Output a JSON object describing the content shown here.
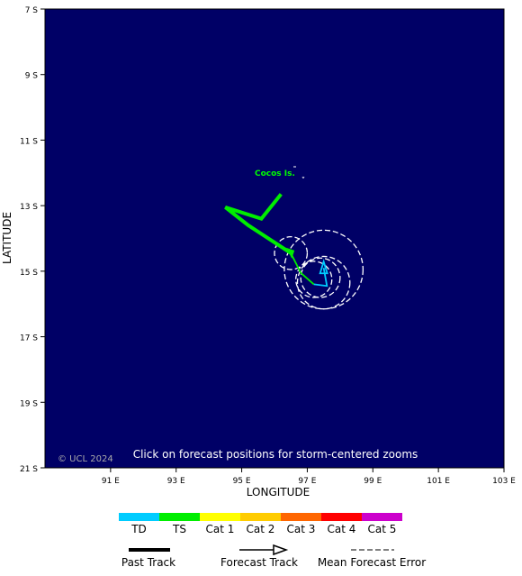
{
  "map": {
    "latitude_label": "LATITUDE",
    "longitude_label": "LONGITUDE",
    "lat_ticks": [
      "7 S",
      "9 S",
      "11 S",
      "13 S",
      "15 S",
      "17 S",
      "19 S",
      "21 S"
    ],
    "lon_ticks": [
      "91 E",
      "93 E",
      "95 E",
      "97 E",
      "99 E",
      "101 E",
      "103 E"
    ],
    "place_label": "Cocos Is.",
    "copyright": "© UCL 2024",
    "instruction": "Click on forecast positions for storm-centered zooms",
    "colors": {
      "ocean": "#000066",
      "past_track": "#00ee00",
      "forecast_track": "#00ccff",
      "place_label": "#00ff00",
      "error_circle": "#ffffff"
    },
    "past_track_points": [
      [
        96.2,
        12.65
      ],
      [
        95.6,
        13.4
      ],
      [
        94.5,
        13.05
      ],
      [
        95.2,
        13.6
      ],
      [
        96.5,
        14.45
      ]
    ],
    "forecast_track_points": [
      [
        96.5,
        14.45
      ],
      [
        96.8,
        15.05
      ],
      [
        97.2,
        15.4
      ],
      [
        97.6,
        15.45
      ],
      [
        97.5,
        14.9
      ]
    ],
    "error_circles": [
      {
        "lon": 96.5,
        "lat": 14.45,
        "r_deg": 0.5
      },
      {
        "lon": 97.2,
        "lat": 15.25,
        "r_deg": 0.55
      },
      {
        "lon": 97.4,
        "lat": 15.2,
        "r_deg": 0.6
      },
      {
        "lon": 97.5,
        "lat": 15.35,
        "r_deg": 0.8
      },
      {
        "lon": 97.5,
        "lat": 14.95,
        "r_deg": 1.2
      }
    ]
  },
  "legend": {
    "categories": [
      {
        "label": "TD",
        "color": "#00ccff"
      },
      {
        "label": "TS",
        "color": "#00ee00"
      },
      {
        "label": "Cat 1",
        "color": "#ffff00"
      },
      {
        "label": "Cat 2",
        "color": "#ffcc00"
      },
      {
        "label": "Cat 3",
        "color": "#ff6600"
      },
      {
        "label": "Cat 4",
        "color": "#ff0000"
      },
      {
        "label": "Cat 5",
        "color": "#cc00cc"
      }
    ],
    "past_track": "Past Track",
    "forecast_track": "Forecast Track",
    "mean_error": "Mean Forecast Error"
  }
}
